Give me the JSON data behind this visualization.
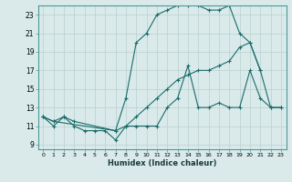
{
  "xlabel": "Humidex (Indice chaleur)",
  "background_color": "#daeaea",
  "grid_color": "#b8d0d0",
  "line_color": "#1a6b6b",
  "xlim": [
    -0.5,
    23.5
  ],
  "ylim": [
    8.5,
    24.0
  ],
  "xticks": [
    0,
    1,
    2,
    3,
    4,
    5,
    6,
    7,
    8,
    9,
    10,
    11,
    12,
    13,
    14,
    15,
    16,
    17,
    18,
    19,
    20,
    21,
    22,
    23
  ],
  "yticks": [
    9,
    11,
    13,
    15,
    17,
    19,
    21,
    23
  ],
  "line1_x": [
    0,
    1,
    2,
    3,
    4,
    5,
    6,
    7,
    8,
    9,
    10,
    11,
    12,
    13,
    14,
    15,
    16,
    17,
    18,
    19,
    20,
    21,
    22,
    23
  ],
  "line1_y": [
    12,
    11,
    12,
    11,
    10.5,
    10.5,
    10.5,
    9.5,
    11,
    11,
    11,
    11,
    13,
    14,
    17.5,
    13,
    13,
    13.5,
    13,
    13,
    17,
    14,
    13,
    13
  ],
  "line2_x": [
    0,
    1,
    2,
    3,
    7,
    8,
    9,
    10,
    11,
    12,
    13,
    14,
    15,
    16,
    17,
    18,
    19,
    20,
    21,
    22,
    23
  ],
  "line2_y": [
    12,
    11.5,
    12,
    11.5,
    10.5,
    11,
    12,
    13,
    14,
    15,
    16,
    16.5,
    17,
    17,
    17.5,
    18,
    19.5,
    20,
    17,
    13,
    13
  ],
  "line3_x": [
    0,
    1,
    7,
    8,
    9,
    10,
    11,
    12,
    13,
    14,
    15,
    16,
    17,
    18,
    19,
    20,
    21
  ],
  "line3_y": [
    12,
    11.5,
    10.5,
    14,
    20,
    21,
    23,
    23.5,
    24,
    24,
    24,
    23.5,
    23.5,
    24,
    21,
    20,
    17
  ]
}
